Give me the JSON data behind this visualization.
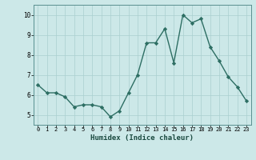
{
  "x": [
    0,
    1,
    2,
    3,
    4,
    5,
    6,
    7,
    8,
    9,
    10,
    11,
    12,
    13,
    14,
    15,
    16,
    17,
    18,
    19,
    20,
    21,
    22,
    23
  ],
  "y": [
    6.5,
    6.1,
    6.1,
    5.9,
    5.4,
    5.5,
    5.5,
    5.4,
    4.9,
    5.2,
    6.1,
    7.0,
    8.6,
    8.6,
    9.3,
    7.6,
    10.0,
    9.6,
    9.8,
    8.4,
    7.7,
    6.9,
    6.4,
    5.7
  ],
  "xlabel": "Humidex (Indice chaleur)",
  "ylim": [
    4.5,
    10.5
  ],
  "xlim": [
    -0.5,
    23.5
  ],
  "yticks": [
    5,
    6,
    7,
    8,
    9,
    10
  ],
  "xticks": [
    0,
    1,
    2,
    3,
    4,
    5,
    6,
    7,
    8,
    9,
    10,
    11,
    12,
    13,
    14,
    15,
    16,
    17,
    18,
    19,
    20,
    21,
    22,
    23
  ],
  "line_color": "#2d6e63",
  "marker_color": "#2d6e63",
  "bg_color": "#cce8e8",
  "grid_color": "#aacfcf",
  "axis_bg": "#cce8e8"
}
